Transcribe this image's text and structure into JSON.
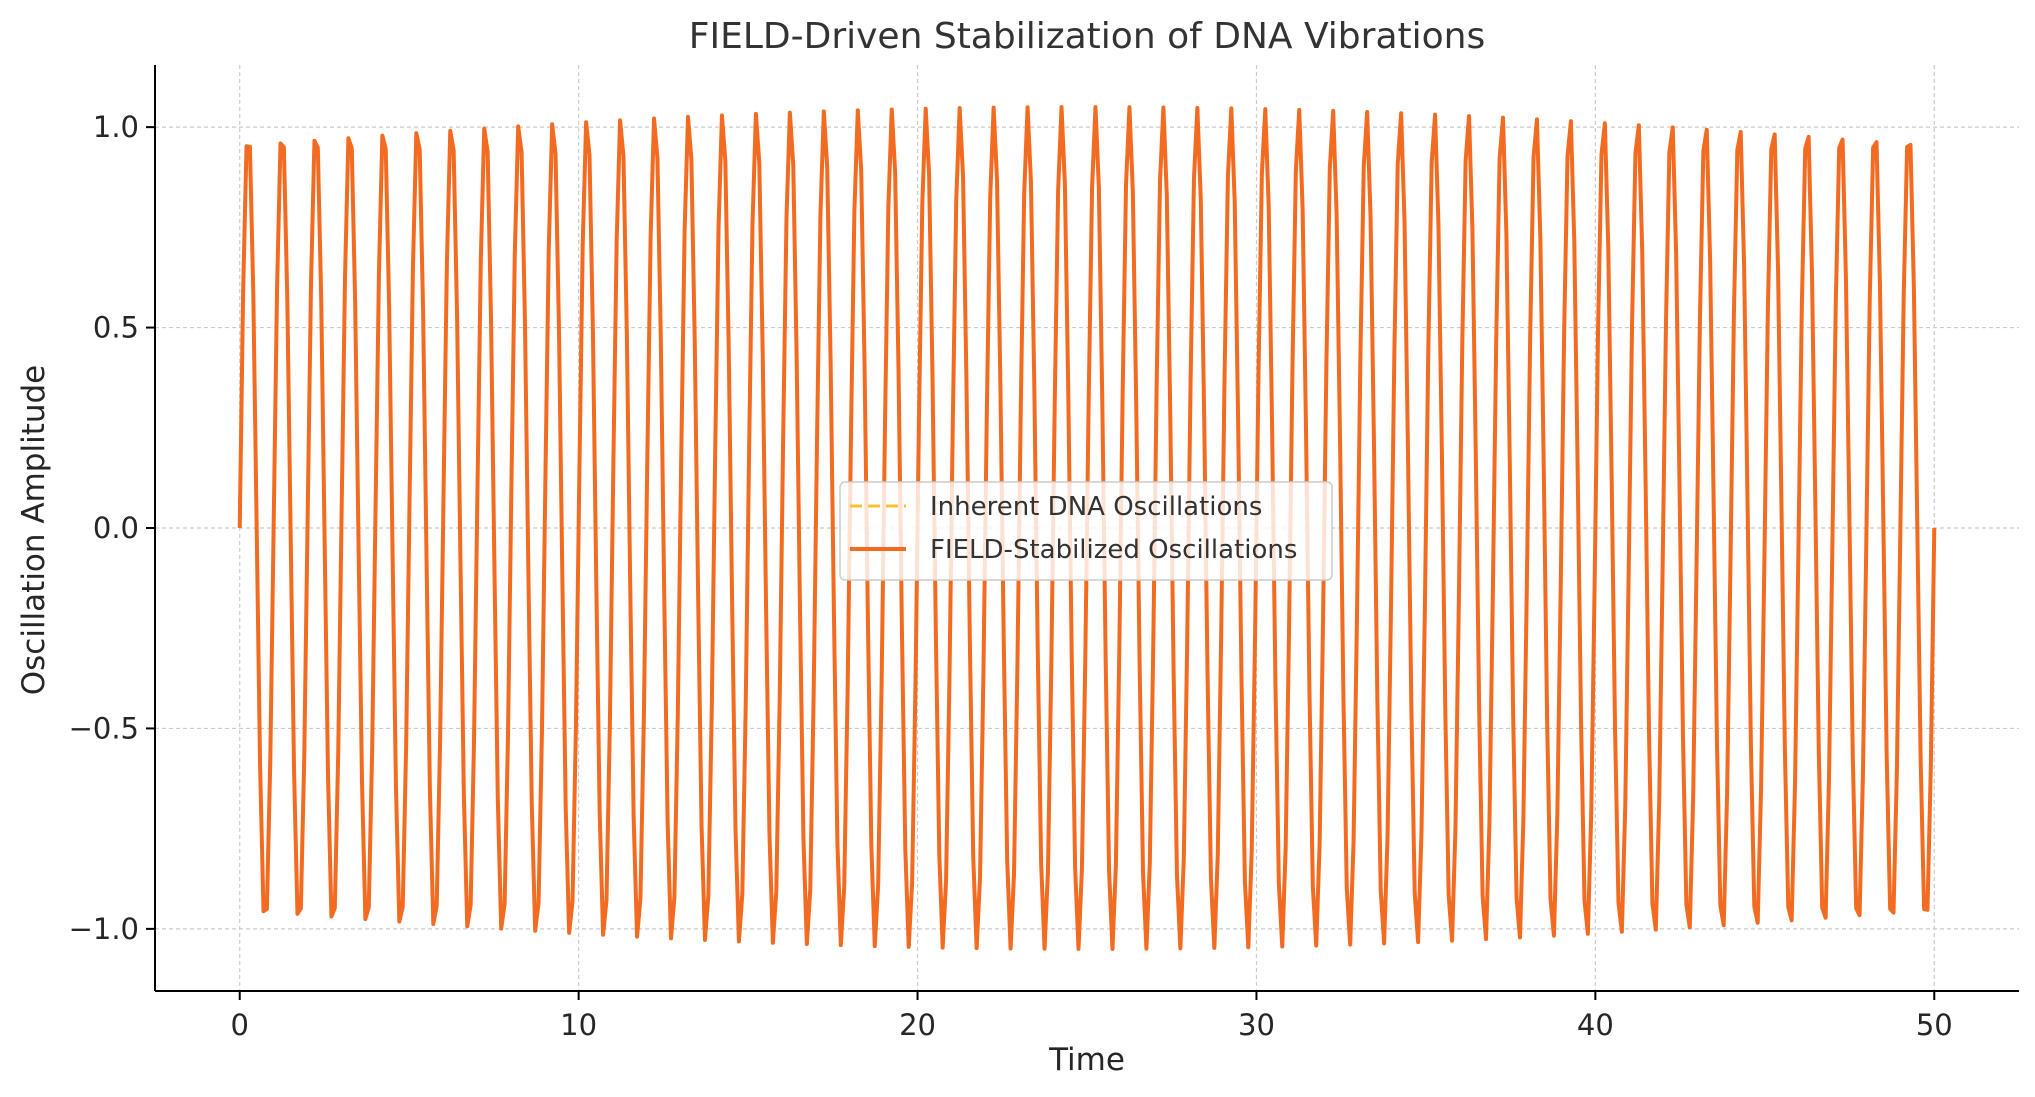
{
  "chart_data": {
    "type": "line",
    "title": "FIELD-Driven Stabilization of DNA Vibrations",
    "xlabel": "Time",
    "ylabel": "Oscillation Amplitude",
    "xlim": [
      -2.5,
      52.5
    ],
    "ylim": [
      -1.155,
      1.155
    ],
    "x_ticks": [
      0,
      10,
      20,
      30,
      40,
      50
    ],
    "x_tick_labels": [
      "0",
      "10",
      "20",
      "30",
      "40",
      "50"
    ],
    "y_ticks": [
      -1.0,
      -0.5,
      0.0,
      0.5,
      1.0
    ],
    "y_tick_labels": [
      "−1.0",
      "−0.5",
      "0.0",
      "0.5",
      "1.0"
    ],
    "grid": true,
    "legend_position": "center",
    "series": [
      {
        "name": "Inherent DNA Oscillations",
        "style": "dashed",
        "color": "#ffbf33",
        "function": "sin(2*pi*t)*(1+0.05*sin(pi*t/50))",
        "t_start": 0,
        "t_end": 50,
        "samples": 500
      },
      {
        "name": "FIELD-Stabilized Oscillations",
        "style": "solid",
        "color": "#f26b21",
        "function": "sin(2*pi*t)*(1+0.05*sin(pi*t/50))",
        "t_start": 0,
        "t_end": 50,
        "samples": 500
      }
    ]
  }
}
